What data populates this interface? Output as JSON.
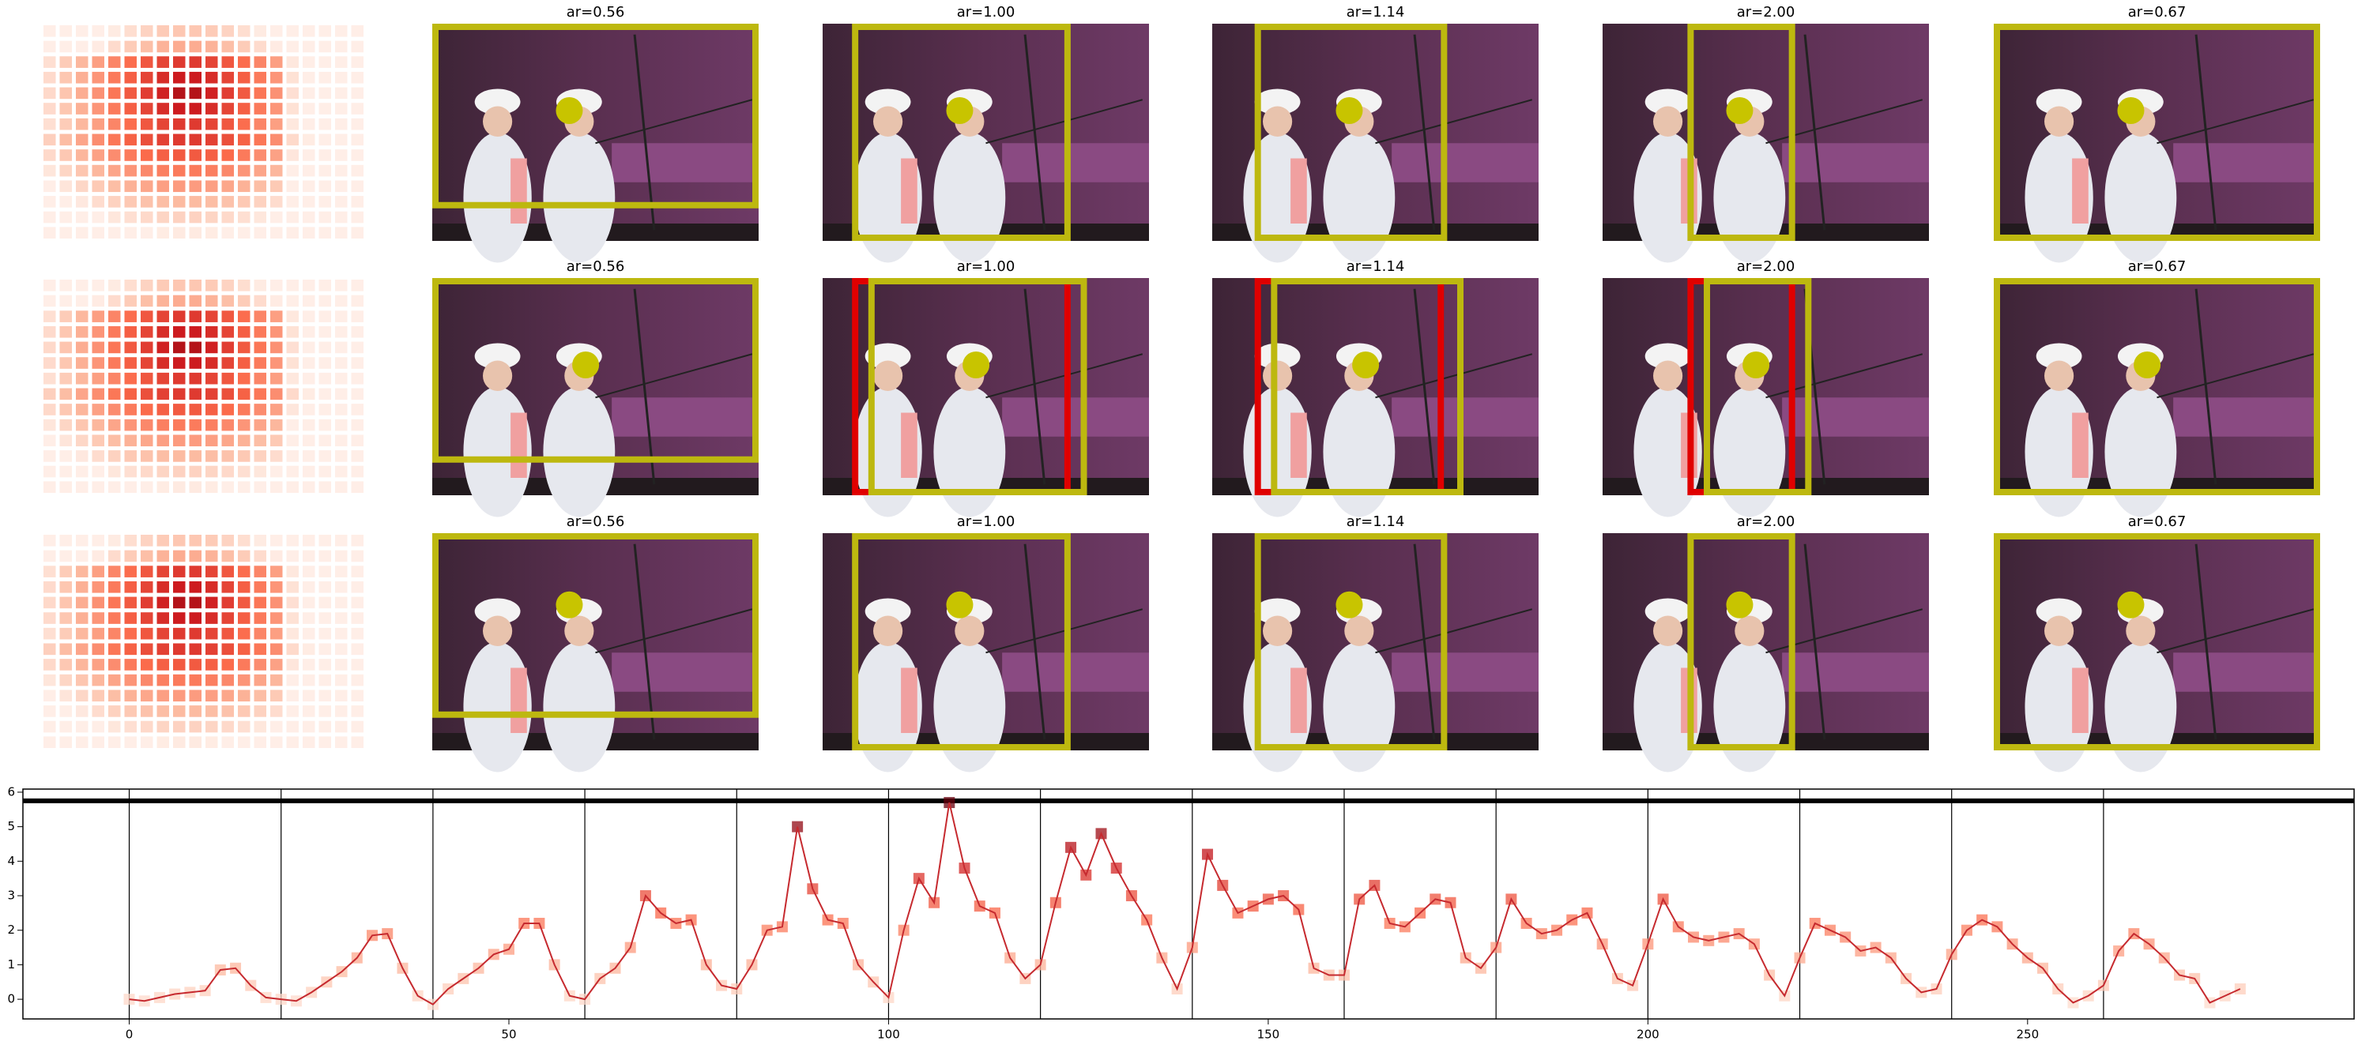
{
  "image_grid": {
    "rows": [
      {
        "titles": [
          "ar=0.56",
          "ar=1.00",
          "ar=1.14",
          "ar=2.00",
          "ar=0.67"
        ]
      },
      {
        "titles": [
          "ar=0.56",
          "ar=1.00",
          "ar=1.14",
          "ar=2.00",
          "ar=0.67"
        ]
      },
      {
        "titles": [
          "ar=0.56",
          "ar=1.00",
          "ar=1.14",
          "ar=2.00",
          "ar=0.67"
        ]
      }
    ]
  },
  "chart_data": {
    "type": "line",
    "x": [
      0,
      2,
      4,
      6,
      8,
      10,
      12,
      14,
      16,
      18,
      20,
      22,
      24,
      26,
      28,
      30,
      32,
      34,
      36,
      38,
      40,
      42,
      44,
      46,
      48,
      50,
      52,
      54,
      56,
      58,
      60,
      62,
      64,
      66,
      68,
      70,
      72,
      74,
      76,
      78,
      80,
      82,
      84,
      86,
      88,
      90,
      92,
      94,
      96,
      98,
      100,
      102,
      104,
      106,
      108,
      110,
      112,
      114,
      116,
      118,
      120,
      122,
      124,
      126,
      128,
      130,
      132,
      134,
      136,
      138,
      140,
      142,
      144,
      146,
      148,
      150,
      152,
      154,
      156,
      158,
      160,
      162,
      164,
      166,
      168,
      170,
      172,
      174,
      176,
      178,
      180,
      182,
      184,
      186,
      188,
      190,
      192,
      194,
      196,
      198,
      200,
      202,
      204,
      206,
      208,
      210,
      212,
      214,
      216,
      218,
      220,
      222,
      224,
      226,
      228,
      230,
      232,
      234,
      236,
      238,
      240,
      242,
      244,
      246,
      248,
      250,
      252,
      254,
      256,
      258,
      260,
      262,
      264,
      266,
      268,
      270,
      272,
      274,
      276,
      278
    ],
    "series": [
      {
        "color": "#c62a2f",
        "values": [
          0,
          -0.05,
          0.05,
          0.15,
          0.2,
          0.25,
          0.85,
          0.9,
          0.4,
          0.05,
          0,
          -0.05,
          0.2,
          0.5,
          0.8,
          1.2,
          1.85,
          1.9,
          0.9,
          0.1,
          -0.15,
          0.3,
          0.6,
          0.9,
          1.3,
          1.45,
          2.2,
          2.2,
          1.0,
          0.1,
          0,
          0.6,
          0.9,
          1.5,
          3.0,
          2.5,
          2.2,
          2.3,
          1.0,
          0.4,
          0.3,
          1.0,
          2.0,
          2.1,
          5.0,
          3.2,
          2.3,
          2.2,
          1.0,
          0.5,
          0.05,
          2.0,
          3.5,
          2.8,
          5.7,
          3.8,
          2.7,
          2.5,
          1.2,
          0.6,
          1.0,
          2.8,
          4.4,
          3.6,
          4.8,
          3.8,
          3.0,
          2.3,
          1.2,
          0.3,
          1.5,
          4.2,
          3.3,
          2.5,
          2.7,
          2.9,
          3.0,
          2.6,
          0.9,
          0.7,
          0.7,
          2.9,
          3.3,
          2.2,
          2.1,
          2.5,
          2.9,
          2.8,
          1.2,
          0.9,
          1.5,
          2.9,
          2.2,
          1.9,
          2.0,
          2.3,
          2.5,
          1.6,
          0.6,
          0.4,
          1.6,
          2.9,
          2.1,
          1.8,
          1.7,
          1.8,
          1.9,
          1.6,
          0.7,
          0.1,
          1.2,
          2.2,
          2.0,
          1.8,
          1.4,
          1.5,
          1.2,
          0.6,
          0.2,
          0.3,
          1.3,
          2.0,
          2.3,
          2.1,
          1.6,
          1.2,
          0.9,
          0.3,
          -0.1,
          0.1,
          0.4,
          1.4,
          1.9,
          1.6,
          1.2,
          0.7,
          0.6,
          -0.1,
          0.1,
          0.3
        ]
      }
    ],
    "xlim": [
      -14,
      293
    ],
    "xticks": [
      0,
      50,
      100,
      150,
      200,
      250
    ],
    "ylim": [
      -0.57,
      6.09
    ],
    "yticks": [
      0,
      1,
      2,
      3,
      4,
      5,
      6
    ],
    "vlines": [
      0,
      20,
      40,
      60,
      80,
      100,
      120,
      140,
      160,
      180,
      200,
      220,
      240,
      260
    ],
    "hline": 5.75,
    "marker": "square"
  }
}
